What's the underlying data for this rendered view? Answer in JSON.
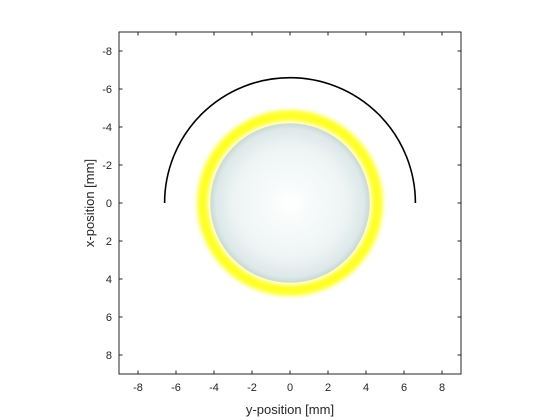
{
  "chart_data": {
    "type": "image_plot",
    "title": "",
    "xlabel": "y-position [mm]",
    "ylabel": "x-position [mm]",
    "xlim": [
      -9,
      9
    ],
    "ylim": [
      -9,
      9
    ],
    "y_axis_reversed": true,
    "x_ticks": [
      -8,
      -6,
      -4,
      -2,
      0,
      2,
      4,
      6,
      8
    ],
    "x_tick_labels": [
      "-8",
      "-6",
      "-4",
      "-2",
      "0",
      "2",
      "4",
      "6",
      "8"
    ],
    "y_ticks": [
      -8,
      -6,
      -4,
      -2,
      0,
      2,
      4,
      6,
      8
    ],
    "y_tick_labels": [
      "-8",
      "-6",
      "-4",
      "-2",
      "0",
      "2",
      "4",
      "6",
      "8"
    ],
    "grid": false,
    "disk": {
      "center_y_mm": 0,
      "center_x_mm": 0,
      "radius_mm": 4.2,
      "color": "#e6eeee"
    },
    "ring": {
      "center_y_mm": 0,
      "center_x_mm": 0,
      "radius_mm": 4.6,
      "color": "#ffff00"
    },
    "arc": {
      "center_y_mm": 0,
      "center_x_mm": 0,
      "radius_mm": 6.6,
      "from_angle_deg": 180,
      "to_angle_deg": 0,
      "color": "#000000"
    },
    "colors": {
      "axes": "#262626",
      "background": "#ffffff"
    }
  }
}
